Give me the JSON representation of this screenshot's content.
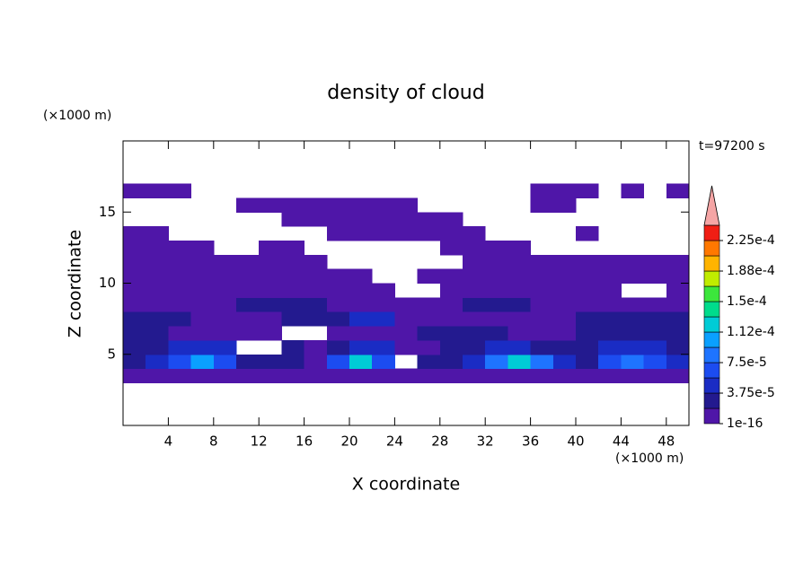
{
  "chart_data": {
    "type": "contour",
    "title": "density of cloud",
    "xlabel": "X coordinate",
    "ylabel": "Z coordinate",
    "x_unit": "(×1000 m)",
    "y_unit": "(×1000 m)",
    "annotation": "t=97200 s",
    "xlim": [
      0,
      50
    ],
    "ylim": [
      0,
      20
    ],
    "xticks": [
      4,
      8,
      12,
      16,
      20,
      24,
      28,
      32,
      36,
      40,
      44,
      48
    ],
    "yticks": [
      5,
      10,
      15
    ],
    "x": [
      1,
      3,
      5,
      7,
      9,
      11,
      13,
      15,
      17,
      19,
      21,
      23,
      25,
      27,
      29,
      31,
      33,
      35,
      37,
      39,
      41,
      43,
      45,
      47,
      49
    ],
    "y": [
      3.5,
      4.5,
      5.5,
      6.5,
      7.5,
      8.5,
      9.5,
      10.5,
      11.5,
      12.5,
      13.5,
      14.5,
      15.5,
      16.5
    ],
    "z": [
      [
        1e-05,
        1e-05,
        1e-05,
        1e-05,
        1e-05,
        1e-05,
        1e-05,
        1e-05,
        1e-05,
        1e-05,
        1e-05,
        1e-05,
        1e-05,
        1e-05,
        1e-05,
        1e-05,
        1e-05,
        1e-05,
        1e-05,
        1e-05,
        1e-05,
        1e-05,
        1e-05,
        1e-05,
        1e-05
      ],
      [
        3e-05,
        5e-05,
        7e-05,
        0.00011,
        7e-05,
        3e-05,
        3e-05,
        3e-05,
        1e-05,
        7e-05,
        0.00013,
        7e-05,
        null,
        3e-05,
        3e-05,
        5e-05,
        9e-05,
        0.00013,
        9e-05,
        5e-05,
        3e-05,
        7e-05,
        9e-05,
        7e-05,
        5e-05
      ],
      [
        3e-05,
        3e-05,
        5e-05,
        5e-05,
        5e-05,
        null,
        null,
        3e-05,
        1e-05,
        3e-05,
        5e-05,
        5e-05,
        1e-05,
        1e-05,
        3e-05,
        3e-05,
        5e-05,
        5e-05,
        3e-05,
        3e-05,
        3e-05,
        5e-05,
        5e-05,
        5e-05,
        3e-05
      ],
      [
        3e-05,
        3e-05,
        1e-05,
        1e-05,
        1e-05,
        1e-05,
        1e-05,
        null,
        null,
        1e-05,
        1e-05,
        1e-05,
        1e-05,
        3e-05,
        3e-05,
        3e-05,
        3e-05,
        1e-05,
        1e-05,
        1e-05,
        3e-05,
        3e-05,
        3e-05,
        3e-05,
        3e-05
      ],
      [
        3e-05,
        3e-05,
        3e-05,
        1e-05,
        1e-05,
        1e-05,
        1e-05,
        3e-05,
        3e-05,
        3e-05,
        5e-05,
        5e-05,
        1e-05,
        1e-05,
        1e-05,
        1e-05,
        1e-05,
        1e-05,
        1e-05,
        1e-05,
        3e-05,
        3e-05,
        3e-05,
        3e-05,
        3e-05
      ],
      [
        1e-05,
        1e-05,
        1e-05,
        1e-05,
        1e-05,
        3e-05,
        3e-05,
        3e-05,
        3e-05,
        1e-05,
        1e-05,
        1e-05,
        1e-05,
        1e-05,
        1e-05,
        3e-05,
        3e-05,
        3e-05,
        1e-05,
        1e-05,
        1e-05,
        1e-05,
        1e-05,
        1e-05,
        1e-05
      ],
      [
        1e-05,
        1e-05,
        1e-05,
        1e-05,
        1e-05,
        1e-05,
        1e-05,
        1e-05,
        1e-05,
        1e-05,
        1e-05,
        1e-05,
        null,
        null,
        1e-05,
        1e-05,
        1e-05,
        1e-05,
        1e-05,
        1e-05,
        1e-05,
        1e-05,
        null,
        null,
        1e-05
      ],
      [
        1e-05,
        1e-05,
        1e-05,
        1e-05,
        1e-05,
        1e-05,
        1e-05,
        1e-05,
        1e-05,
        1e-05,
        1e-05,
        null,
        null,
        1e-05,
        1e-05,
        1e-05,
        1e-05,
        1e-05,
        1e-05,
        1e-05,
        1e-05,
        1e-05,
        1e-05,
        1e-05,
        1e-05
      ],
      [
        1e-05,
        1e-05,
        1e-05,
        1e-05,
        1e-05,
        1e-05,
        1e-05,
        1e-05,
        1e-05,
        null,
        null,
        null,
        null,
        null,
        null,
        1e-05,
        1e-05,
        1e-05,
        1e-05,
        1e-05,
        1e-05,
        1e-05,
        1e-05,
        1e-05,
        1e-05
      ],
      [
        1e-05,
        1e-05,
        1e-05,
        1e-05,
        null,
        null,
        1e-05,
        1e-05,
        null,
        null,
        null,
        null,
        null,
        null,
        1e-05,
        1e-05,
        1e-05,
        1e-05,
        null,
        null,
        null,
        null,
        null,
        null,
        null
      ],
      [
        1e-05,
        1e-05,
        null,
        null,
        null,
        null,
        null,
        null,
        null,
        1e-05,
        1e-05,
        1e-05,
        1e-05,
        1e-05,
        1e-05,
        1e-05,
        null,
        null,
        null,
        null,
        1e-05,
        null,
        null,
        null,
        null
      ],
      [
        null,
        null,
        null,
        null,
        null,
        null,
        null,
        1e-05,
        1e-05,
        1e-05,
        1e-05,
        1e-05,
        1e-05,
        1e-05,
        1e-05,
        null,
        null,
        null,
        null,
        null,
        null,
        null,
        null,
        null,
        null
      ],
      [
        null,
        null,
        null,
        null,
        null,
        1e-05,
        1e-05,
        1e-05,
        1e-05,
        1e-05,
        1e-05,
        1e-05,
        1e-05,
        null,
        null,
        null,
        null,
        null,
        1e-05,
        1e-05,
        null,
        null,
        null,
        null,
        null
      ],
      [
        1e-05,
        1e-05,
        1e-05,
        null,
        null,
        null,
        null,
        null,
        null,
        null,
        null,
        null,
        null,
        null,
        null,
        null,
        null,
        null,
        1e-05,
        1e-05,
        1e-05,
        null,
        1e-05,
        null,
        1e-05
      ]
    ],
    "levels": [
      1e-16,
      1.875e-05,
      3.75e-05,
      5.625e-05,
      7.5e-05,
      9.375e-05,
      0.0001125,
      0.00013125,
      0.00015,
      0.00016875,
      0.0001875,
      0.00020625,
      0.000225
    ],
    "colors": [
      "#4f16a8",
      "#231a8f",
      "#1a2cc4",
      "#1c4cf0",
      "#1e74ff",
      "#0aa0ff",
      "#00ccd6",
      "#00dc8c",
      "#3ce63c",
      "#c0ec00",
      "#ffb400",
      "#ff7800",
      "#f01e14"
    ],
    "over_color": "#f5a5a5",
    "colorbar_ticks": [
      {
        "value": 1e-16,
        "label": "1e-16"
      },
      {
        "value": 3.75e-05,
        "label": "3.75e-5"
      },
      {
        "value": 7.5e-05,
        "label": "7.5e-5"
      },
      {
        "value": 0.0001125,
        "label": "1.12e-4"
      },
      {
        "value": 0.00015,
        "label": "1.5e-4"
      },
      {
        "value": 0.0001875,
        "label": "1.88e-4"
      },
      {
        "value": 0.000225,
        "label": "2.25e-4"
      }
    ]
  }
}
